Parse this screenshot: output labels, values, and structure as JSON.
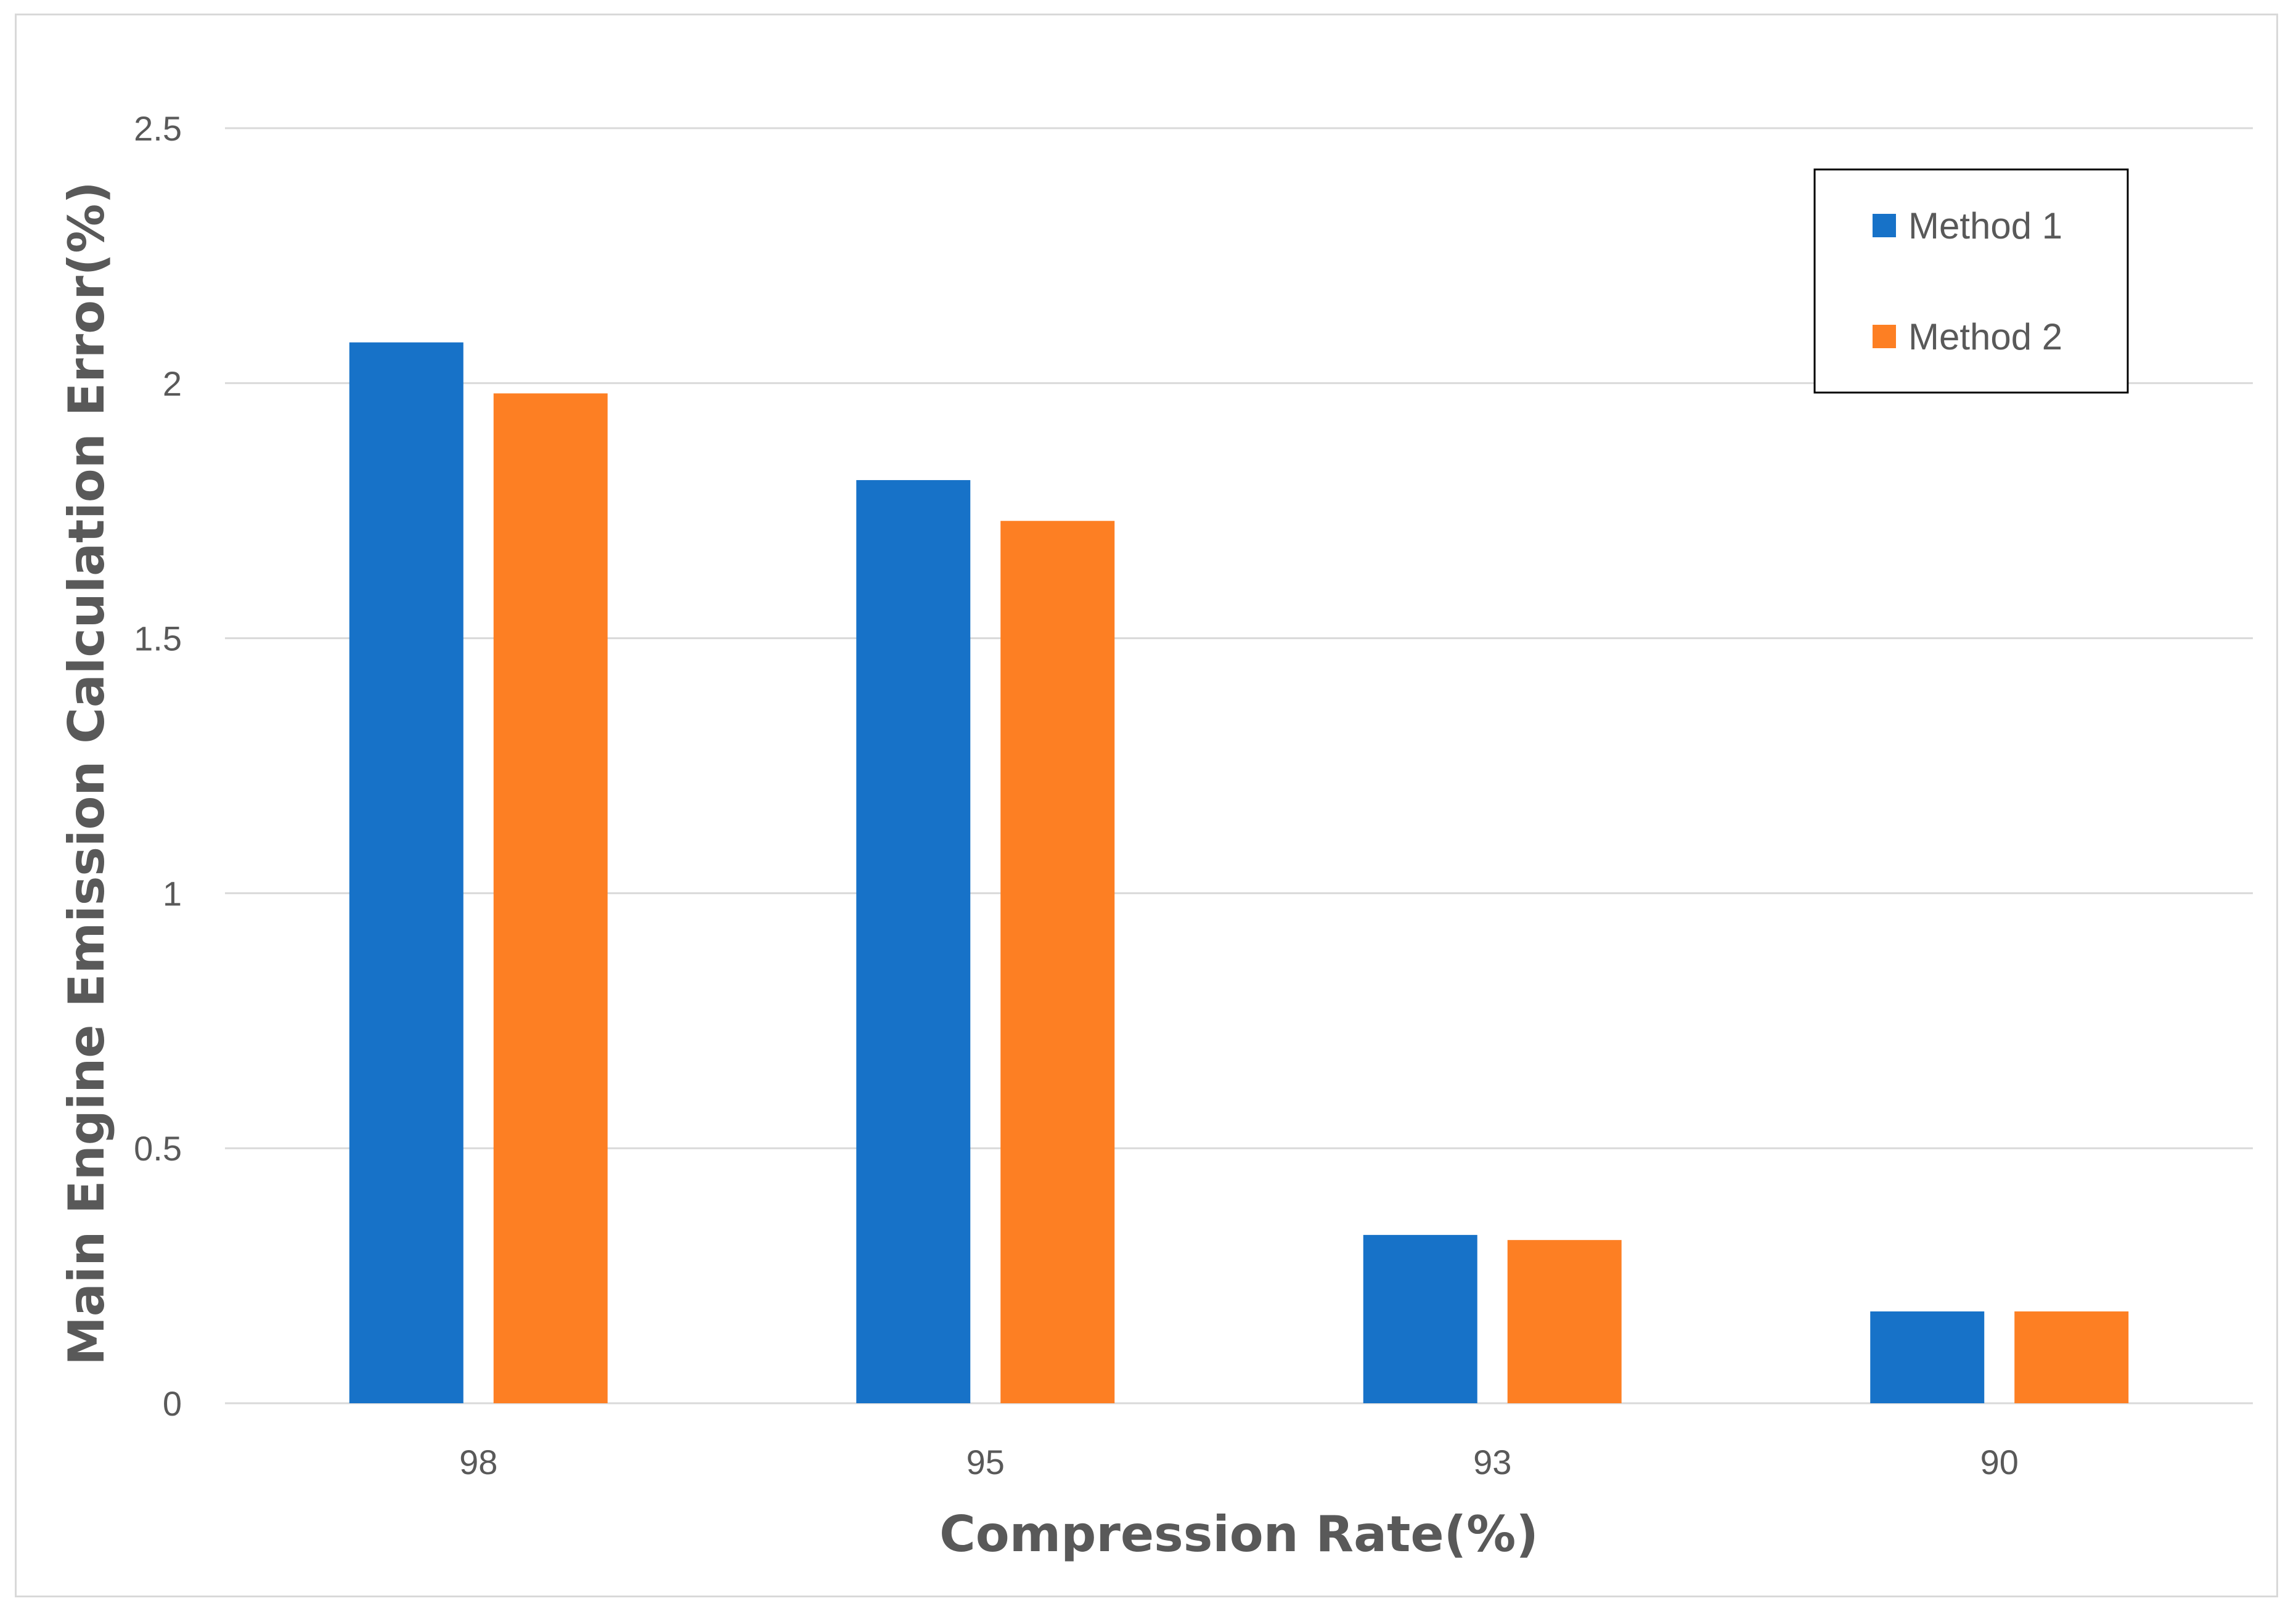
{
  "chart_data": {
    "type": "bar",
    "title": "",
    "xlabel": "Compression Rate(%)",
    "ylabel": "Main Engine Emission Calculation Error(%)",
    "categories": [
      "98",
      "95",
      "93",
      "90"
    ],
    "series": [
      {
        "name": "Method 1",
        "color": "#1772c8",
        "values": [
          2.08,
          1.81,
          0.33,
          0.18
        ]
      },
      {
        "name": "Method 2",
        "color": "#fd7f23",
        "values": [
          1.98,
          1.73,
          0.32,
          0.18
        ]
      }
    ],
    "ylim": [
      0,
      2.5
    ],
    "yticks": [
      "0",
      "0.5",
      "1",
      "1.5",
      "2",
      "2.5"
    ],
    "grid": true,
    "legend_position": "top-right",
    "gridline_color": "#d9d9d9"
  }
}
